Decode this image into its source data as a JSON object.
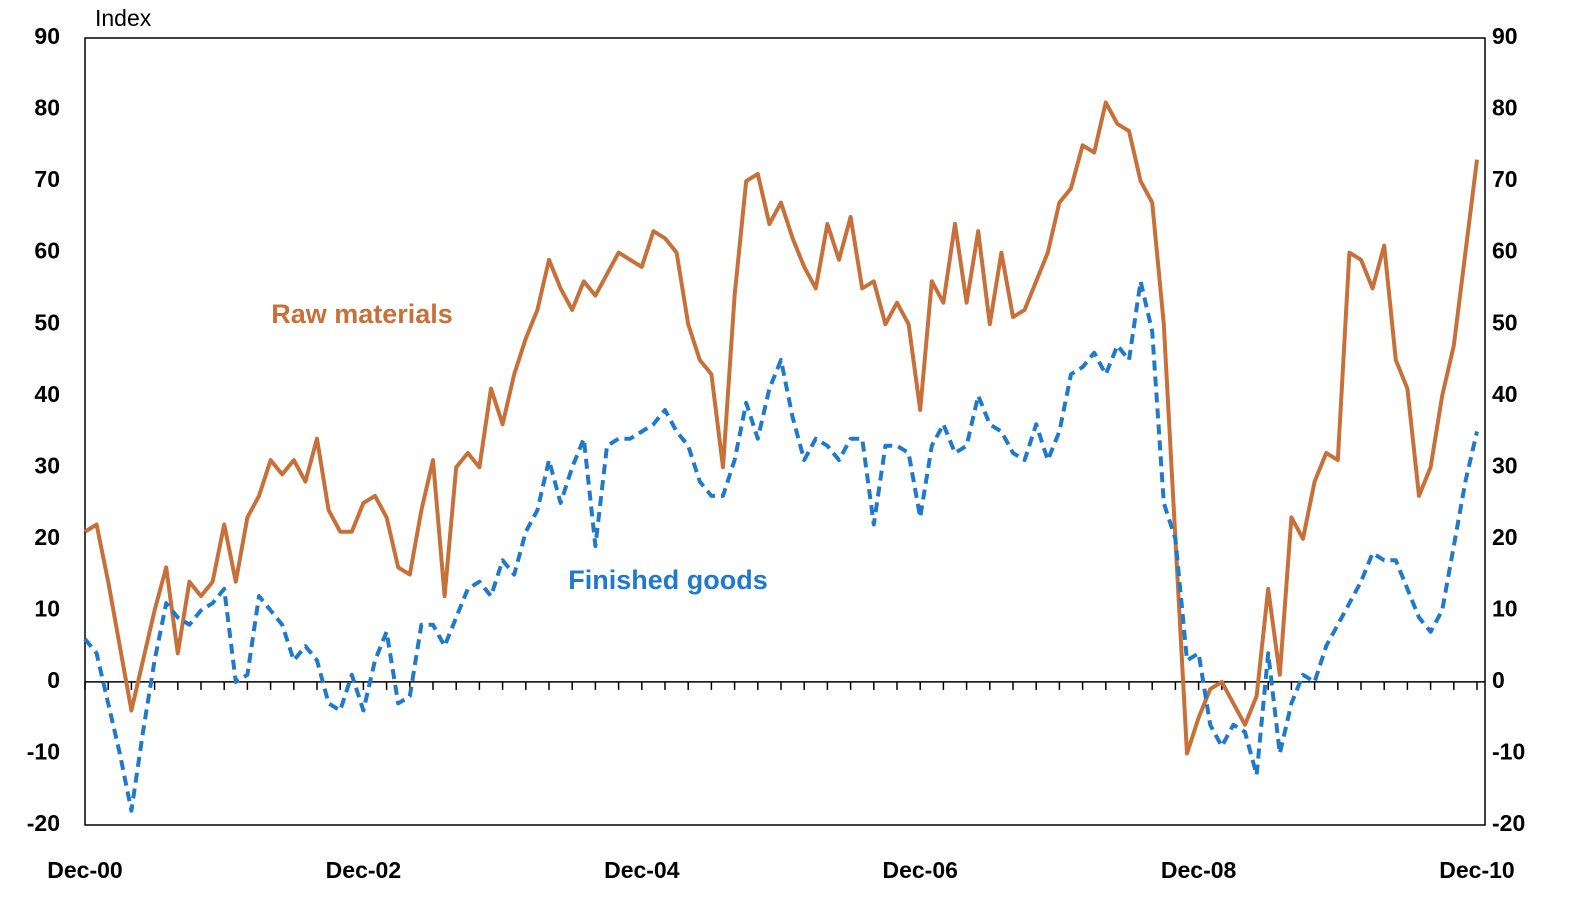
{
  "chart_data": {
    "type": "line",
    "ylabel": "Index",
    "categories": [
      "Dec-00",
      null,
      null,
      null,
      null,
      null,
      null,
      null,
      null,
      null,
      null,
      null,
      null,
      null,
      null,
      null,
      null,
      null,
      null,
      null,
      null,
      null,
      null,
      null,
      "Dec-02",
      null,
      null,
      null,
      null,
      null,
      null,
      null,
      null,
      null,
      null,
      null,
      null,
      null,
      null,
      null,
      null,
      null,
      null,
      null,
      null,
      null,
      null,
      null,
      "Dec-04",
      null,
      null,
      null,
      null,
      null,
      null,
      null,
      null,
      null,
      null,
      null,
      null,
      null,
      null,
      null,
      null,
      null,
      null,
      null,
      null,
      null,
      null,
      null,
      "Dec-06",
      null,
      null,
      null,
      null,
      null,
      null,
      null,
      null,
      null,
      null,
      null,
      null,
      null,
      null,
      null,
      null,
      null,
      null,
      null,
      null,
      null,
      null,
      null,
      "Dec-08",
      null,
      null,
      null,
      null,
      null,
      null,
      null,
      null,
      null,
      null,
      null,
      null,
      null,
      null,
      null,
      null,
      null,
      null,
      null,
      null,
      null,
      null,
      null,
      "Dec-10"
    ],
    "series": [
      {
        "name": "Raw materials",
        "color": "#c8703a",
        "style": "solid",
        "values": [
          21,
          22,
          14,
          5,
          -4,
          3,
          10,
          16,
          4,
          14,
          12,
          14,
          22,
          14,
          23,
          26,
          31,
          29,
          31,
          28,
          34,
          24,
          21,
          21,
          25,
          26,
          23,
          16,
          15,
          24,
          31,
          12,
          30,
          32,
          30,
          41,
          36,
          43,
          48,
          52,
          59,
          55,
          52,
          56,
          54,
          57,
          60,
          59,
          58,
          63,
          62,
          60,
          50,
          45,
          43,
          30,
          54,
          70,
          71,
          64,
          67,
          62,
          58,
          55,
          64,
          59,
          65,
          55,
          56,
          50,
          53,
          50,
          38,
          56,
          53,
          64,
          53,
          63,
          50,
          60,
          51,
          52,
          56,
          60,
          67,
          69,
          75,
          74,
          81,
          78,
          77,
          70,
          67,
          50,
          20,
          -10,
          -5,
          -1,
          0,
          -3,
          -6,
          -2,
          13,
          1,
          23,
          20,
          28,
          32,
          31,
          60,
          59,
          55,
          61,
          45,
          41,
          26,
          30,
          40,
          47,
          60,
          73
        ]
      },
      {
        "name": "Finished goods",
        "color": "#1f7acb",
        "style": "dashed",
        "values": [
          6,
          4,
          -3,
          -10,
          -18,
          -7,
          3,
          11,
          9,
          8,
          10,
          11,
          13,
          0,
          1,
          12,
          10,
          8,
          3,
          5,
          3,
          -3,
          -4,
          1,
          -4,
          3,
          7,
          -3,
          -2,
          8,
          8,
          5,
          9,
          13,
          14,
          12,
          17,
          15,
          21,
          24,
          31,
          25,
          30,
          34,
          19,
          33,
          34,
          34,
          35,
          36,
          38,
          35,
          33,
          28,
          26,
          26,
          31,
          39,
          34,
          41,
          45,
          37,
          31,
          34,
          33,
          31,
          34,
          34,
          22,
          33,
          33,
          32,
          23,
          33,
          36,
          32,
          33,
          40,
          36,
          35,
          32,
          31,
          36,
          31,
          35,
          43,
          44,
          46,
          43,
          47,
          45,
          56,
          49,
          25,
          20,
          3,
          4,
          -6,
          -9,
          -6,
          -7,
          -13,
          4,
          -10,
          -3,
          1,
          0,
          5,
          8,
          11,
          14,
          18,
          17,
          17,
          13,
          9,
          7,
          10,
          19,
          28,
          35
        ]
      }
    ],
    "ylim": [
      -20,
      90
    ],
    "yticks": [
      -20,
      -10,
      0,
      10,
      20,
      30,
      40,
      50,
      60,
      70,
      80,
      90
    ],
    "y2lim": [
      -20,
      90
    ],
    "y2ticks": [
      -20,
      -10,
      0,
      10,
      20,
      30,
      40,
      50,
      60,
      70,
      80,
      90
    ],
    "grid": false
  }
}
